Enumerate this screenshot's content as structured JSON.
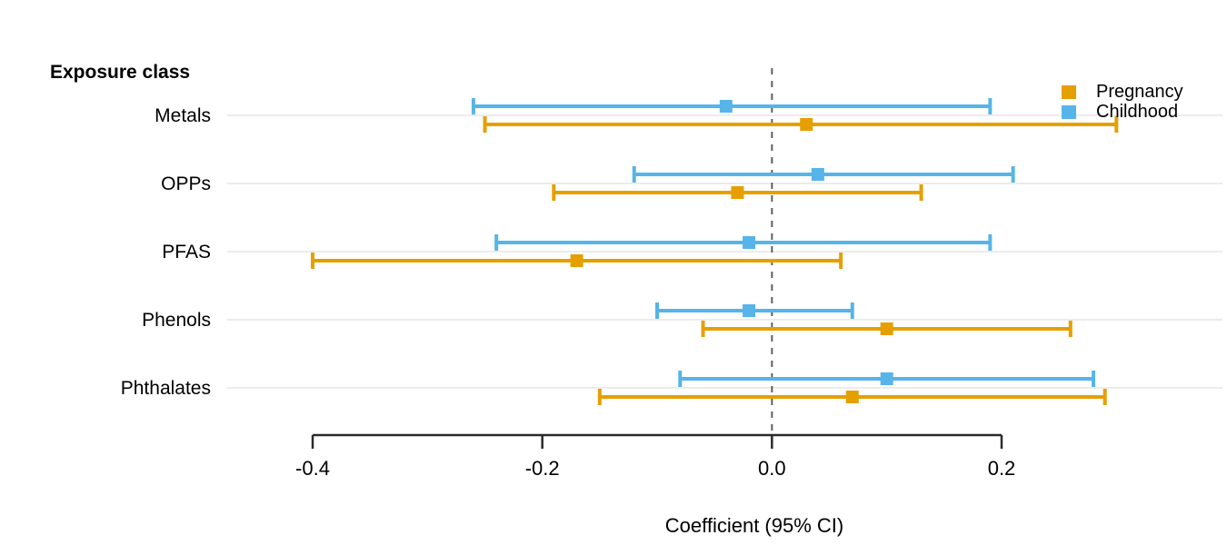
{
  "chart_data": {
    "type": "forest",
    "heading": "Exposure class",
    "xlabel": "Coefficient (95% CI)",
    "categories": [
      "Metals",
      "OPPs",
      "PFAS",
      "Phenols",
      "Phthalates"
    ],
    "series": [
      {
        "name": "Pregnancy",
        "color": "#E69F00",
        "estimates": [
          0.03,
          -0.03,
          -0.17,
          0.1,
          0.07
        ],
        "ci_low": [
          -0.25,
          -0.19,
          -0.4,
          -0.06,
          -0.15
        ],
        "ci_high": [
          0.3,
          0.13,
          0.06,
          0.26,
          0.29
        ]
      },
      {
        "name": "Childhood",
        "color": "#56B4E9",
        "estimates": [
          -0.04,
          0.04,
          -0.02,
          -0.02,
          0.1
        ],
        "ci_low": [
          -0.26,
          -0.12,
          -0.24,
          -0.1,
          -0.08
        ],
        "ci_high": [
          0.19,
          0.21,
          0.19,
          0.07,
          0.28
        ]
      }
    ],
    "x_ticks": [
      -0.4,
      -0.2,
      0.0,
      0.2
    ],
    "x_tick_labels": [
      "-0.4",
      "-0.2",
      "0.0",
      "0.2"
    ],
    "xlim": [
      -0.4,
      0.2
    ],
    "reference_line": 0.0,
    "grid": "horizontal",
    "legend_position": "top-right",
    "colors": {
      "grid": "#E5E5E5",
      "axis": "#2B2B2B",
      "reference": "#5F5F5F",
      "text": "#000000",
      "background": "#FFFFFF"
    }
  }
}
